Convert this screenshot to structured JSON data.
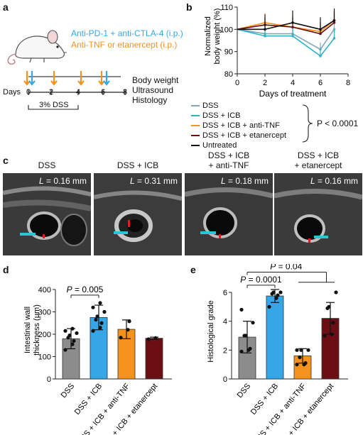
{
  "panels": {
    "a": {
      "label": "a",
      "treatment_icb": "Anti-PD-1 + anti-CTLA-4 (i.p.)",
      "treatment_tnf": "Anti-TNF or etanercept (i.p.)",
      "days_label": "Days",
      "days": [
        "0",
        "2",
        "4",
        "6",
        "8"
      ],
      "dss_label": "3% DSS",
      "readouts": [
        "Body weight",
        "Ultrasound",
        "Histology"
      ]
    },
    "b": {
      "label": "b",
      "legend": [
        "DSS",
        "DSS + ICB",
        "DSS + ICB + anti-TNF",
        "DSS + ICB + etanercept",
        "Untreated"
      ],
      "p_text": "P < 0.0001"
    },
    "c": {
      "label": "c",
      "images": [
        {
          "title": "DSS",
          "measure_var": "L",
          "measure_val": " = 0.16 mm"
        },
        {
          "title": "DSS + ICB",
          "measure_var": "L",
          "measure_val": " = 0.31 mm"
        },
        {
          "title": "DSS + ICB\n+ anti-TNF",
          "measure_var": "L",
          "measure_val": " = 0.18 mm"
        },
        {
          "title": "DSS + ICB\n+ etanercept",
          "measure_var": "L",
          "measure_val": " = 0.16 mm"
        }
      ]
    },
    "d": {
      "label": "d",
      "p_text": "P = 0.005"
    },
    "e": {
      "label": "e",
      "p_text_1": "P = 0.0001",
      "p_text_2": "P = 0.04"
    }
  },
  "colors": {
    "dss": "#8c8c8c",
    "icb": "#35a6e6",
    "tnf": "#f5921e",
    "etan": "#6b0f14",
    "untreated": "#111111",
    "line_dss": "#7fa7b8",
    "line_icb": "#2bb3c9"
  },
  "chart_data": [
    {
      "id": "body-weight",
      "type": "line",
      "xlabel": "Days of treatment",
      "ylabel": "Normalized\nbody weight (%)",
      "xlim": [
        0,
        8
      ],
      "ylim": [
        80,
        110
      ],
      "xticks": [
        0,
        2,
        4,
        6,
        8
      ],
      "yticks": [
        80,
        90,
        100,
        110
      ],
      "x": [
        0,
        2,
        4,
        6,
        7
      ],
      "series": [
        {
          "name": "DSS",
          "color_key": "line_dss",
          "values": [
            100,
            98,
            98,
            91,
            100
          ]
        },
        {
          "name": "DSS + ICB",
          "color_key": "line_icb",
          "values": [
            100,
            97,
            97,
            88,
            96
          ]
        },
        {
          "name": "DSS + ICB + anti-TNF",
          "color_key": "tnf",
          "values": [
            100,
            103,
            101,
            99,
            104
          ]
        },
        {
          "name": "DSS + ICB + etanercept",
          "color_key": "etan",
          "values": [
            100,
            102,
            101,
            98,
            103
          ]
        },
        {
          "name": "Untreated",
          "color_key": "untreated",
          "values": [
            100,
            100,
            103,
            100,
            104
          ]
        }
      ]
    },
    {
      "id": "wall-thickness",
      "type": "bar",
      "ylabel": "Intestinal wall\nthickness (μm)",
      "ylim": [
        0,
        400
      ],
      "yticks": [
        0,
        100,
        200,
        300,
        400
      ],
      "categories": [
        "DSS",
        "DSS + ICB",
        "DSS + ICB + anti-TNF",
        "DSS + ICB + etanercept"
      ],
      "values": [
        180,
        275,
        222,
        182
      ],
      "errors": [
        45,
        55,
        42,
        5
      ],
      "points": [
        [
          130,
          155,
          170,
          185,
          195,
          205,
          215,
          225
        ],
        [
          215,
          230,
          250,
          265,
          280,
          300,
          320,
          340
        ],
        [
          185,
          220,
          258
        ],
        [
          178,
          183
        ]
      ]
    },
    {
      "id": "histological-grade",
      "type": "bar",
      "ylabel": "Histological grade",
      "ylim": [
        0,
        6
      ],
      "yticks": [
        0,
        2,
        4,
        6
      ],
      "categories": [
        "DSS",
        "DSS + ICB",
        "DSS + ICB + anti-TNF",
        "DSS + ICB + etanercept"
      ],
      "values": [
        2.9,
        5.75,
        1.6,
        4.2
      ],
      "errors": [
        1.1,
        0.45,
        0.5,
        1.1
      ],
      "points": [
        [
          1.9,
          2.0,
          2.1,
          3.0,
          3.0,
          3.9,
          4.8
        ],
        [
          5.0,
          5.6,
          5.8,
          5.9,
          6.0,
          6.0
        ],
        [
          1.0,
          1.0,
          1.1,
          1.5,
          2.0,
          2.0,
          2.0
        ],
        [
          3.0,
          3.1,
          3.9,
          4.9,
          5.0,
          6.0
        ]
      ]
    }
  ]
}
